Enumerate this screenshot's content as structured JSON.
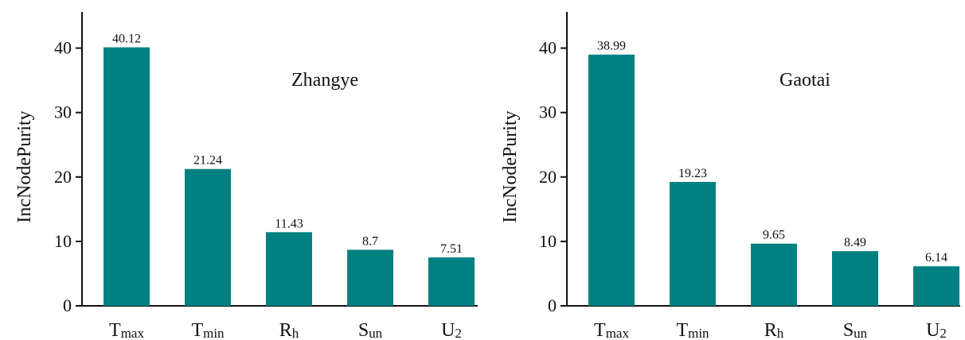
{
  "bar_color": "#008080",
  "chart_data": [
    {
      "type": "bar",
      "title": "Zhangye",
      "ylabel": "IncNodePurity",
      "ylim": [
        0,
        45
      ],
      "yticks": [
        0,
        10,
        20,
        30,
        40
      ],
      "categories": [
        {
          "main": "T",
          "sub": "max"
        },
        {
          "main": "T",
          "sub": "min"
        },
        {
          "main": "R",
          "sub": "h"
        },
        {
          "main": "S",
          "sub": "un"
        },
        {
          "main": "U",
          "sub": "2"
        }
      ],
      "values": [
        40.12,
        21.24,
        11.43,
        8.7,
        7.51
      ],
      "value_labels": [
        "40.12",
        "21.24",
        "11.43",
        "8.7",
        "7.51"
      ],
      "grid": false
    },
    {
      "type": "bar",
      "title": "Gaotai",
      "ylabel": "IncNodePurity",
      "ylim": [
        0,
        45
      ],
      "yticks": [
        0,
        10,
        20,
        30,
        40
      ],
      "categories": [
        {
          "main": "T",
          "sub": "max"
        },
        {
          "main": "T",
          "sub": "min"
        },
        {
          "main": "R",
          "sub": "h"
        },
        {
          "main": "S",
          "sub": "un"
        },
        {
          "main": "U",
          "sub": "2"
        }
      ],
      "values": [
        38.99,
        19.23,
        9.65,
        8.49,
        6.14
      ],
      "value_labels": [
        "38.99",
        "19.23",
        "9.65",
        "8.49",
        "6.14"
      ],
      "grid": false
    }
  ]
}
